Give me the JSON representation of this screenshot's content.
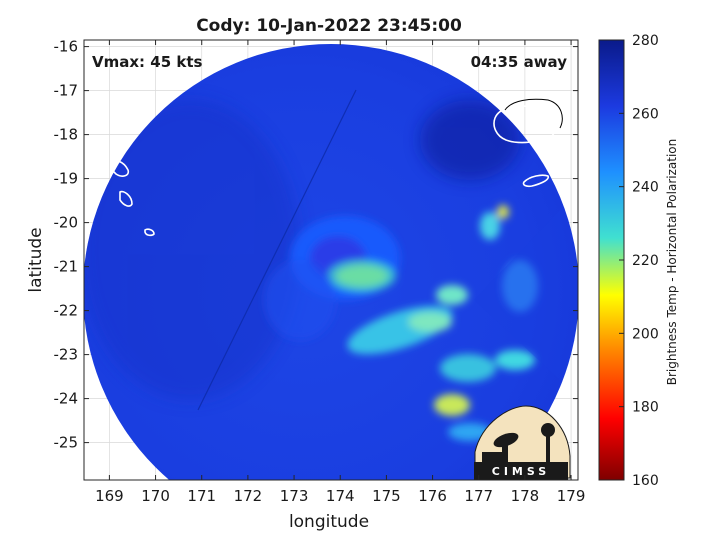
{
  "title": "Cody: 10-Jan-2022 23:45:00",
  "vmax_text": "Vmax: 45 kts",
  "time_text": "04:35 away",
  "axes": {
    "xlabel": "longitude",
    "ylabel": "latitude",
    "x_ticks": [
      169,
      170,
      171,
      172,
      173,
      174,
      175,
      176,
      177,
      178,
      179
    ],
    "y_ticks": [
      -16,
      -17,
      -18,
      -19,
      -20,
      -21,
      -22,
      -23,
      -24,
      -25
    ],
    "x_ticks_text": [
      "169",
      "170",
      "171",
      "172",
      "173",
      "174",
      "175",
      "176",
      "177",
      "178",
      "179"
    ],
    "y_ticks_text": [
      "-16",
      "-17",
      "-18",
      "-19",
      "-20",
      "-21",
      "-22",
      "-23",
      "-24",
      "-25"
    ]
  },
  "colorbar": {
    "label": "Brightness Temp - Horizontal Polarization",
    "ticks": [
      160,
      180,
      200,
      220,
      240,
      260,
      280
    ],
    "ticks_text": [
      "160",
      "180",
      "200",
      "220",
      "240",
      "260",
      "280"
    ],
    "colors": [
      "#7f0000",
      "#ff0000",
      "#ffa500",
      "#ffff00",
      "#40e0d0",
      "#0080ff",
      "#0000cc",
      "#00007f"
    ]
  },
  "logo": {
    "text": "CIMSS"
  }
}
